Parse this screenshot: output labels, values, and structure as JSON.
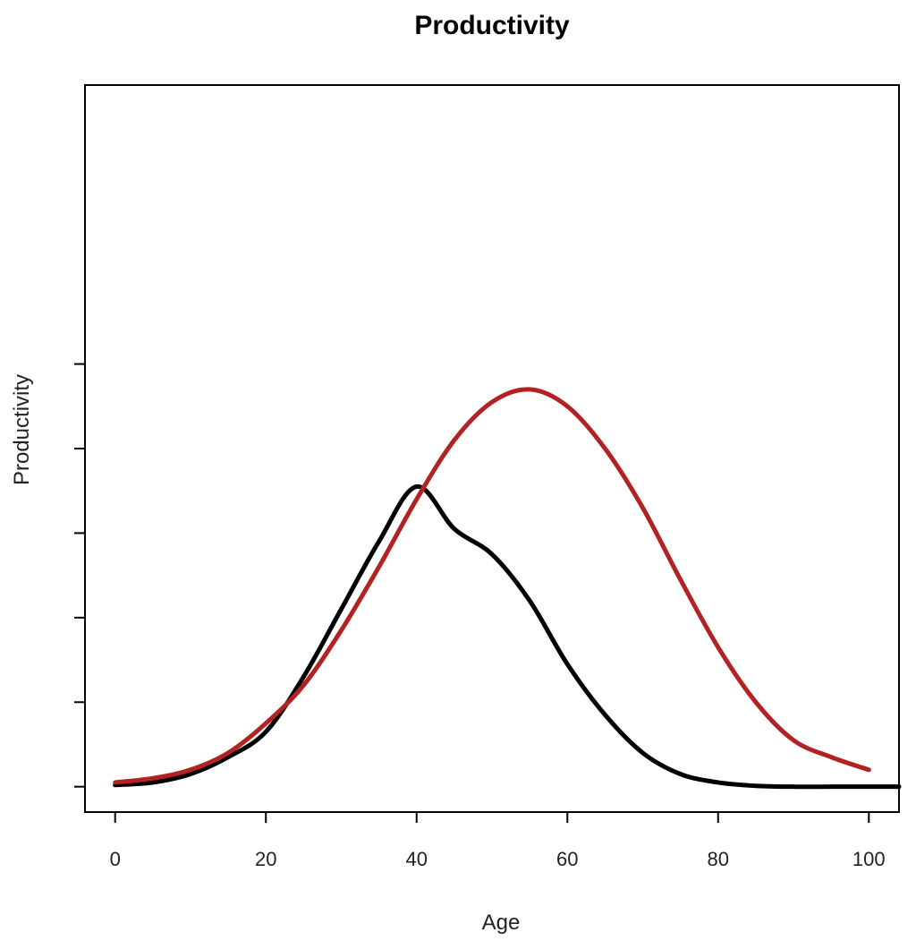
{
  "chart_data": {
    "type": "line",
    "title": "Productivity",
    "xlabel": "Age",
    "ylabel": "Productivity",
    "xlim": [
      -4,
      104
    ],
    "ylim": [
      -0.3,
      8.3
    ],
    "x_ticks": [
      0,
      20,
      40,
      60,
      80,
      100
    ],
    "x_tick_labels": [
      "0",
      "20",
      "40",
      "60",
      "80",
      "100"
    ],
    "y_ticks": [
      0,
      1,
      2,
      3,
      4,
      5
    ],
    "y_tick_labels": [
      "",
      "",
      "",
      "",
      "",
      ""
    ],
    "grid": false,
    "series": [
      {
        "color": "#000000",
        "x": [
          0,
          5,
          10,
          15,
          20,
          25,
          30,
          35,
          40,
          45,
          50,
          55,
          60,
          65,
          70,
          75,
          80,
          85,
          90,
          95,
          100,
          104
        ],
        "y": [
          0.02,
          0.05,
          0.15,
          0.35,
          0.65,
          1.3,
          2.1,
          2.9,
          3.55,
          3.05,
          2.75,
          2.2,
          1.45,
          0.85,
          0.4,
          0.15,
          0.05,
          0.01,
          0.0,
          0.0,
          0.0,
          0.0
        ]
      },
      {
        "color": "#b22222",
        "x": [
          0,
          5,
          10,
          15,
          20,
          25,
          30,
          35,
          40,
          45,
          50,
          55,
          60,
          65,
          70,
          75,
          80,
          85,
          90,
          95,
          100
        ],
        "y": [
          0.05,
          0.1,
          0.2,
          0.4,
          0.75,
          1.2,
          1.85,
          2.6,
          3.4,
          4.1,
          4.55,
          4.7,
          4.5,
          4.0,
          3.3,
          2.45,
          1.65,
          1.0,
          0.55,
          0.35,
          0.2
        ]
      }
    ]
  }
}
